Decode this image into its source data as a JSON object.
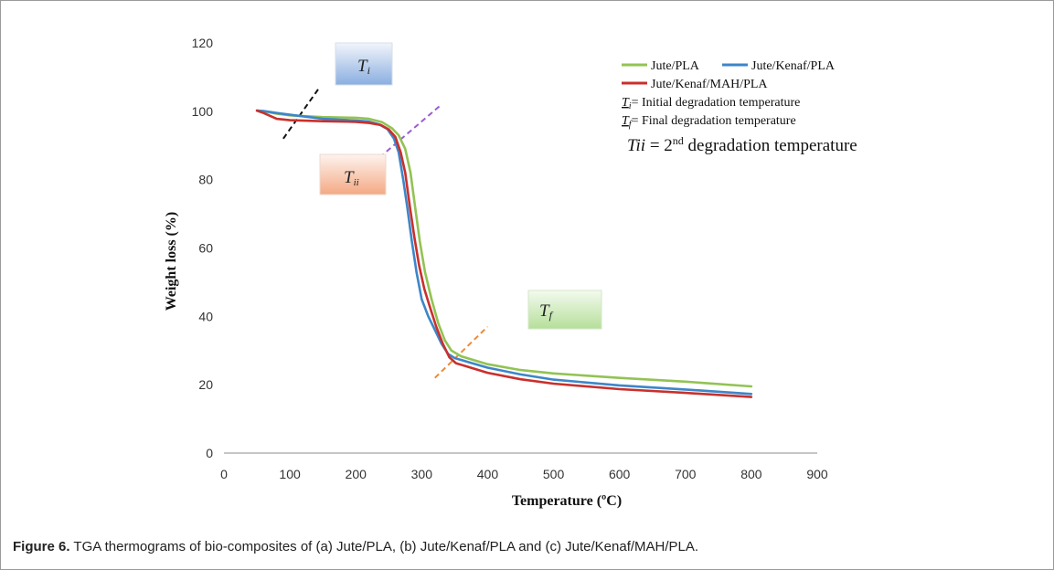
{
  "caption": {
    "label": "Figure 6.",
    "text": " TGA thermograms of bio-composites of (a) Jute/PLA, (b) Jute/Kenaf/PLA and (c) Jute/Kenaf/MAH/PLA."
  },
  "chart_data": {
    "type": "line",
    "xlabel": "Temperature (ºC)",
    "ylabel": "Weight loss (%)",
    "xlim": [
      0,
      900
    ],
    "ylim": [
      0,
      120
    ],
    "xticks": [
      0,
      100,
      200,
      300,
      400,
      500,
      600,
      700,
      800,
      900
    ],
    "yticks": [
      0,
      20,
      40,
      60,
      80,
      100,
      120
    ],
    "grid": false,
    "legend_position": "top-right",
    "series": [
      {
        "name": "Jute/PLA",
        "color": "#92c353",
        "points": [
          [
            50,
            100.2
          ],
          [
            60,
            100
          ],
          [
            80,
            99.3
          ],
          [
            100,
            98.8
          ],
          [
            150,
            98.3
          ],
          [
            200,
            98.1
          ],
          [
            220,
            97.8
          ],
          [
            240,
            96.8
          ],
          [
            255,
            95
          ],
          [
            265,
            93
          ],
          [
            275,
            89
          ],
          [
            283,
            82
          ],
          [
            290,
            72
          ],
          [
            297,
            62
          ],
          [
            305,
            53
          ],
          [
            315,
            45
          ],
          [
            325,
            38
          ],
          [
            335,
            33
          ],
          [
            345,
            30
          ],
          [
            360,
            28.3
          ],
          [
            400,
            26
          ],
          [
            450,
            24.3
          ],
          [
            500,
            23.3
          ],
          [
            600,
            22
          ],
          [
            700,
            20.9
          ],
          [
            800,
            19.5
          ]
        ]
      },
      {
        "name": "Jute/Kenaf/PLA",
        "color": "#3d86c9",
        "points": [
          [
            50,
            100.2
          ],
          [
            60,
            100.1
          ],
          [
            80,
            99.5
          ],
          [
            100,
            99
          ],
          [
            150,
            97.8
          ],
          [
            200,
            97.3
          ],
          [
            220,
            97
          ],
          [
            235,
            96.2
          ],
          [
            248,
            94.8
          ],
          [
            258,
            92
          ],
          [
            265,
            88
          ],
          [
            272,
            80
          ],
          [
            278,
            72
          ],
          [
            285,
            62
          ],
          [
            292,
            53
          ],
          [
            300,
            45
          ],
          [
            310,
            40
          ],
          [
            320,
            36
          ],
          [
            330,
            32
          ],
          [
            340,
            29
          ],
          [
            350,
            27.8
          ],
          [
            400,
            25
          ],
          [
            450,
            23
          ],
          [
            500,
            21.5
          ],
          [
            600,
            19.8
          ],
          [
            700,
            18.6
          ],
          [
            800,
            17.3
          ]
        ]
      },
      {
        "name": "Jute/Kenaf/MAH/PLA",
        "color": "#c9302c",
        "points": [
          [
            50,
            100.2
          ],
          [
            60,
            99.5
          ],
          [
            80,
            97.8
          ],
          [
            100,
            97.4
          ],
          [
            150,
            97.1
          ],
          [
            200,
            96.9
          ],
          [
            220,
            96.6
          ],
          [
            238,
            96
          ],
          [
            250,
            94.7
          ],
          [
            260,
            92.5
          ],
          [
            268,
            88
          ],
          [
            275,
            82
          ],
          [
            282,
            72
          ],
          [
            289,
            63
          ],
          [
            296,
            55
          ],
          [
            304,
            48
          ],
          [
            312,
            43
          ],
          [
            322,
            37
          ],
          [
            332,
            32
          ],
          [
            342,
            28
          ],
          [
            352,
            26.3
          ],
          [
            400,
            23.5
          ],
          [
            450,
            21.6
          ],
          [
            500,
            20.3
          ],
          [
            600,
            18.7
          ],
          [
            700,
            17.6
          ],
          [
            800,
            16.4
          ]
        ]
      }
    ],
    "legend_notes": [
      {
        "symbol": "T",
        "sub": "i",
        "text": "= Initial degradation temperature"
      },
      {
        "symbol": "T",
        "sub": "f",
        "text": "= Final degradation temperature"
      }
    ],
    "second_note": {
      "symbol": "Tii",
      "text_before": " = 2",
      "sup": "nd",
      "text_after": " degradation temperature"
    },
    "annotations": [
      {
        "id": "ti",
        "label": "T",
        "sub": "i",
        "fill_top": "#f2f5fb",
        "fill_bottom": "#8aaee0",
        "line_color": "#111111",
        "line": [
          [
            90,
            92
          ],
          [
            145,
            107
          ]
        ]
      },
      {
        "id": "tii",
        "label": "T",
        "sub": "ii",
        "fill_top": "#fdf3ee",
        "fill_bottom": "#f4a983",
        "line_color": "#9a5bd6",
        "line": [
          [
            215,
            83
          ],
          [
            330,
            102
          ]
        ]
      },
      {
        "id": "tf",
        "label": "T",
        "sub": "f",
        "fill_top": "#f3faee",
        "fill_bottom": "#b6df9a",
        "line_color": "#ec8a3a",
        "line": [
          [
            320,
            22
          ],
          [
            400,
            37
          ]
        ]
      }
    ]
  }
}
